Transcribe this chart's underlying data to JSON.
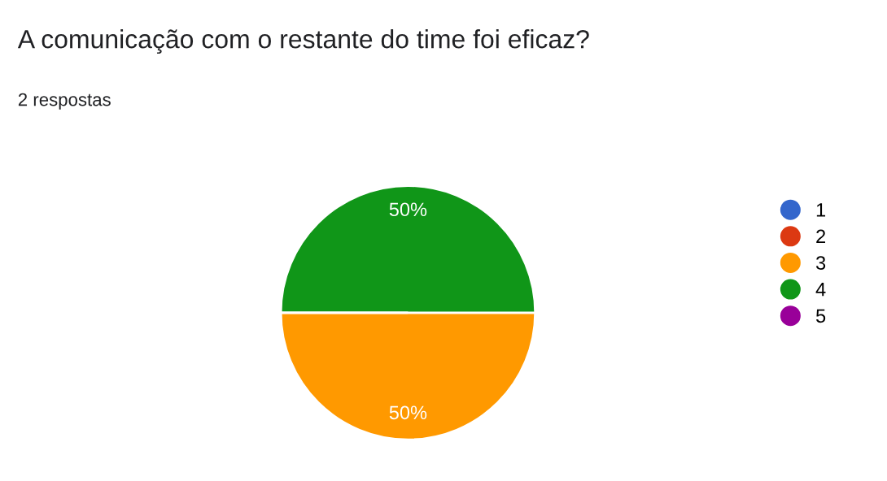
{
  "chart_data": {
    "type": "pie",
    "title": "A comunicação com o restante do time foi eficaz?",
    "subtitle": "2 respostas",
    "categories": [
      "1",
      "2",
      "3",
      "4",
      "5"
    ],
    "values": [
      0,
      0,
      50,
      50,
      0
    ],
    "colors": [
      "#3366cc",
      "#dc3912",
      "#ff9900",
      "#109618",
      "#990099"
    ],
    "value_labels": [
      null,
      null,
      "50%",
      "50%",
      null
    ],
    "legend": "right"
  }
}
